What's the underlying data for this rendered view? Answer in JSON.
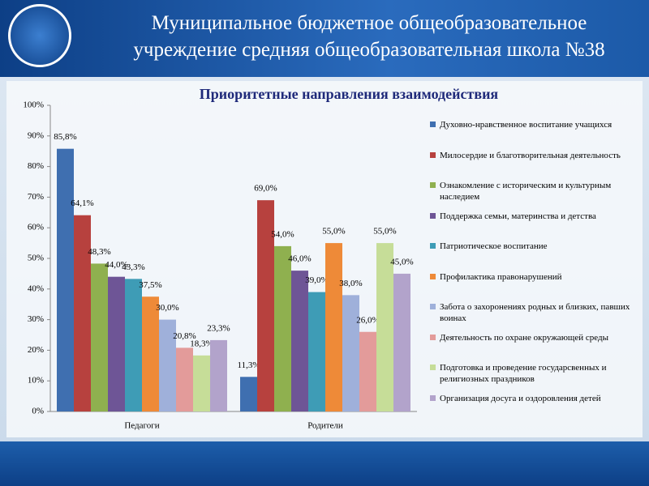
{
  "header": {
    "title": "Муниципальное бюджетное общеобразовательное учреждение средняя общеобразовательная школа №38"
  },
  "chart_data": {
    "type": "bar",
    "title": "Приоритетные направления взаимодействия",
    "categories": [
      "Педагоги",
      "Родители"
    ],
    "series": [
      {
        "name": "Духовно-нравственное воспитание учащихся",
        "color": "#3f6fb0",
        "values": [
          85.8,
          11.3
        ],
        "value_labels": [
          "85,8%",
          "11,3%"
        ]
      },
      {
        "name": "Милосердие и благотворительная деятельность",
        "color": "#b7413e",
        "values": [
          64.1,
          69.0
        ],
        "value_labels": [
          "64,1%",
          "69,0%"
        ]
      },
      {
        "name": "Ознакомление с историческим и культурным наследием",
        "color": "#8fb04f",
        "values": [
          48.3,
          54.0
        ],
        "value_labels": [
          "48,3%",
          "54,0%"
        ]
      },
      {
        "name": "Поддержка семьи, материнства и детства",
        "color": "#6e5596",
        "values": [
          44.0,
          46.0
        ],
        "value_labels": [
          "44,0%",
          "46,0%"
        ]
      },
      {
        "name": "Патриотическое воспитание",
        "color": "#3e9cb6",
        "values": [
          43.3,
          39.0
        ],
        "value_labels": [
          "43,3%",
          "39,0%"
        ]
      },
      {
        "name": "Профилактика правонарушений",
        "color": "#ee8a38",
        "values": [
          37.5,
          55.0
        ],
        "value_labels": [
          "37,5%",
          "55,0%"
        ]
      },
      {
        "name": "Забота о захоронениях родных и близких, павших воинах",
        "color": "#9fb0da",
        "values": [
          30.0,
          38.0
        ],
        "value_labels": [
          "30,0%",
          "38,0%"
        ]
      },
      {
        "name": "Деятельность по охране окружающей среды",
        "color": "#e39b9a",
        "values": [
          20.8,
          26.0
        ],
        "value_labels": [
          "20,8%",
          "26,0%"
        ]
      },
      {
        "name": "Подготовка и проведение государсвенных и религиозных праздников",
        "color": "#c6dd98",
        "values": [
          18.3,
          55.0
        ],
        "value_labels": [
          "18,3%",
          "55,0%"
        ]
      },
      {
        "name": "Организация досуга и оздоровления детей",
        "color": "#b2a3cb",
        "values": [
          23.3,
          45.0
        ],
        "value_labels": [
          "23,3%",
          "45,0%"
        ]
      }
    ],
    "ylim": [
      0,
      100
    ],
    "yticks": [
      {
        "value": 0,
        "label": "0%"
      },
      {
        "value": 10,
        "label": "10%"
      },
      {
        "value": 20,
        "label": "20%"
      },
      {
        "value": 30,
        "label": "30%"
      },
      {
        "value": 40,
        "label": "40%"
      },
      {
        "value": 50,
        "label": "50%"
      },
      {
        "value": 60,
        "label": "60%"
      },
      {
        "value": 70,
        "label": "70%"
      },
      {
        "value": 80,
        "label": "80%"
      },
      {
        "value": 90,
        "label": "90%"
      },
      {
        "value": 100,
        "label": "100%"
      }
    ],
    "legend": "right"
  }
}
